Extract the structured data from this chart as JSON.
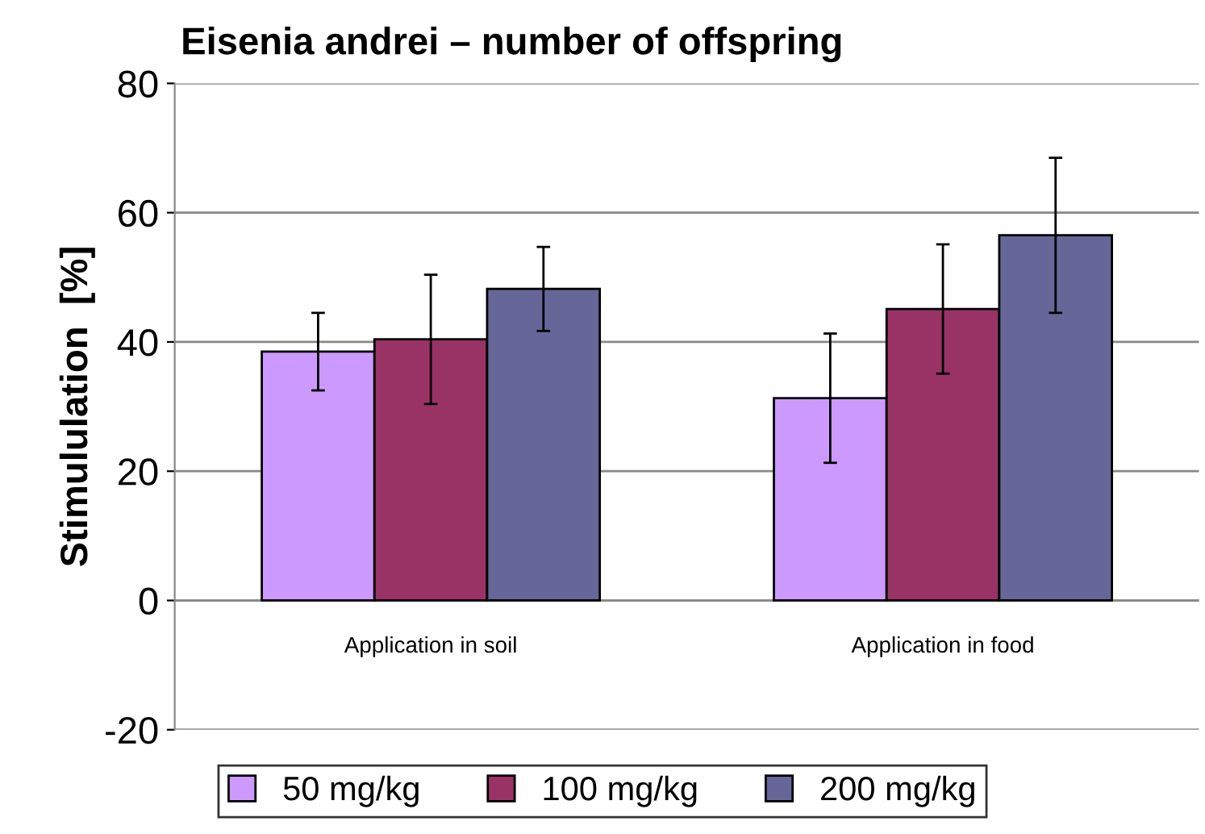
{
  "chart_data": {
    "type": "bar",
    "title": "Eisenia andrei – number of offspring",
    "ylabel": "Stimululation  [%]",
    "categories": [
      "Application in soil",
      "Application in food"
    ],
    "series": [
      {
        "name": "50 mg/kg",
        "color": "#cc99ff",
        "values": [
          38.5,
          31.3
        ],
        "errors": [
          6,
          10
        ]
      },
      {
        "name": "100 mg/kg",
        "color": "#993366",
        "values": [
          40.4,
          45.1
        ],
        "errors": [
          10,
          10
        ]
      },
      {
        "name": "200 mg/kg",
        "color": "#666699",
        "values": [
          48.2,
          56.5
        ],
        "errors": [
          6.5,
          12
        ]
      }
    ],
    "ylim": [
      -20,
      80
    ],
    "yticks": [
      -20,
      0,
      20,
      40,
      60,
      80
    ],
    "grid": "y",
    "legend": "bottom"
  }
}
